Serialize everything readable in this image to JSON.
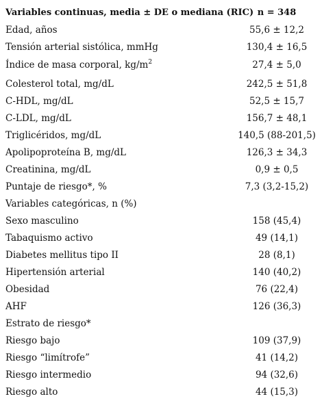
{
  "header": {
    "label": "Variables continuas, media ± DE o mediana (RIC)",
    "value": "n = 348"
  },
  "rows": [
    {
      "label": "Edad, años",
      "value": "55,6 ± 12,2"
    },
    {
      "label": "Tensión arterial sistólica, mmHg",
      "value": "130,4 ± 16,5"
    },
    {
      "label": "Índice de masa corporal, kg/m",
      "sup": "2",
      "value": "27,4 ± 5,0"
    },
    {
      "label": "Colesterol total, mg/dL",
      "value": "242,5 ± 51,8"
    },
    {
      "label": "C-HDL, mg/dL",
      "value": "52,5 ± 15,7"
    },
    {
      "label": "C-LDL, mg/dL",
      "value": "156,7 ± 48,1"
    },
    {
      "label": "Triglicéridos, mg/dL",
      "value": "140,5 (88-201,5)"
    },
    {
      "label": "Apolipoproteína B, mg/dL",
      "value": "126,3 ± 34,3"
    },
    {
      "label": "Creatinina, mg/dL",
      "value": "0,9 ± 0,5"
    },
    {
      "label": "Puntaje de riesgo*, %",
      "value": "7,3 (3,2-15,2)"
    },
    {
      "label": "Variables categóricas, n (%)",
      "value": ""
    },
    {
      "label": "Sexo masculino",
      "value": "158 (45,4)"
    },
    {
      "label": "Tabaquismo activo",
      "value": "49 (14,1)"
    },
    {
      "label": "Diabetes mellitus tipo II",
      "value": "28 (8,1)"
    },
    {
      "label": "Hipertensión arterial",
      "value": "140 (40,2)"
    },
    {
      "label": "Obesidad",
      "value": "76 (22,4)"
    },
    {
      "label": "AHF",
      "value": "126 (36,3)"
    },
    {
      "label": "Estrato de riesgo*",
      "value": ""
    },
    {
      "label": "Riesgo bajo",
      "value": "109 (37,9)"
    },
    {
      "label": "Riesgo “limítrofe”",
      "value": "41 (14,2)"
    },
    {
      "label": "Riesgo intermedio",
      "value": "94 (32,6)"
    },
    {
      "label": "Riesgo alto",
      "value": "44 (15,3)"
    }
  ]
}
